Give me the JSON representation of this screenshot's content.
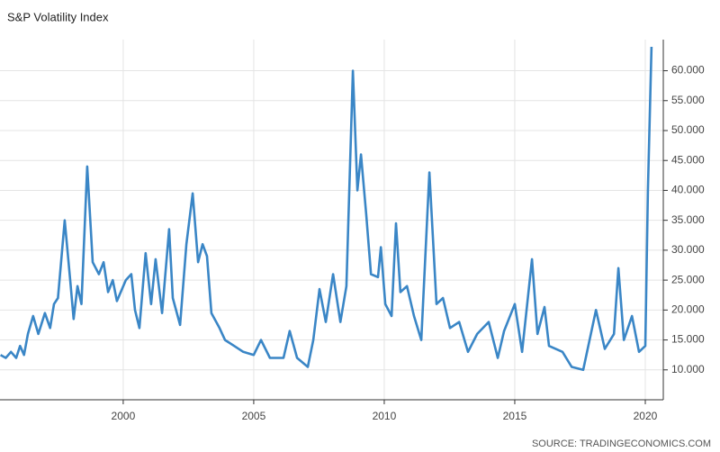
{
  "chart_data": {
    "type": "line",
    "title": "S&P Volatility Index",
    "source": "SOURCE: TRADINGECONOMICS.COM",
    "x": [
      1995.3,
      1995.5,
      1995.7,
      1995.9,
      1996.05,
      1996.2,
      1996.35,
      1996.55,
      1996.75,
      1997.0,
      1997.2,
      1997.35,
      1997.5,
      1997.76,
      1997.97,
      1998.1,
      1998.25,
      1998.4,
      1998.62,
      1998.83,
      1999.07,
      1999.25,
      1999.42,
      1999.6,
      1999.76,
      2000.1,
      2000.31,
      2000.45,
      2000.62,
      2000.86,
      2001.07,
      2001.24,
      2001.49,
      2001.76,
      2001.9,
      2002.18,
      2002.42,
      2002.66,
      2002.87,
      2003.04,
      2003.21,
      2003.38,
      2003.69,
      2003.9,
      2004.25,
      2004.6,
      2005.0,
      2005.28,
      2005.62,
      2006.14,
      2006.38,
      2006.66,
      2007.07,
      2007.28,
      2007.52,
      2007.76,
      2008.04,
      2008.32,
      2008.55,
      2008.8,
      2008.97,
      2009.11,
      2009.31,
      2009.49,
      2009.76,
      2009.87,
      2010.04,
      2010.28,
      2010.45,
      2010.62,
      2010.87,
      2011.14,
      2011.42,
      2011.73,
      2012.0,
      2012.25,
      2012.52,
      2012.87,
      2013.21,
      2013.56,
      2014.0,
      2014.35,
      2014.59,
      2015.0,
      2015.28,
      2015.66,
      2015.87,
      2016.14,
      2016.31,
      2016.83,
      2017.18,
      2017.62,
      2018.11,
      2018.45,
      2018.8,
      2018.97,
      2019.18,
      2019.49,
      2019.76,
      2020.0,
      2020.1,
      2020.24
    ],
    "series": [
      {
        "name": "S&P Volatility Index",
        "color": "#3a86c6",
        "values": [
          12.5,
          12,
          13,
          12,
          14,
          12.5,
          16,
          19,
          16,
          19.5,
          17,
          21,
          22,
          35,
          25,
          18.5,
          24,
          21,
          44,
          28,
          26,
          28,
          23,
          25,
          21.5,
          25,
          26,
          20,
          17,
          29.5,
          21,
          28.5,
          19.5,
          33.5,
          22,
          17.5,
          31,
          39.5,
          28,
          31,
          29,
          19.5,
          17,
          15,
          14,
          13,
          12.5,
          15,
          12,
          12,
          16.5,
          12,
          10.5,
          15,
          23.5,
          18,
          26,
          18,
          24,
          60,
          40,
          46,
          36,
          26,
          25.5,
          30.5,
          21,
          19,
          34.5,
          23,
          24,
          19,
          15,
          43,
          21,
          22,
          17,
          18,
          13,
          16,
          18,
          12,
          16.5,
          21,
          13,
          28.5,
          16,
          20.5,
          14,
          13,
          10.5,
          10,
          20,
          13.5,
          16,
          27,
          15,
          19,
          13,
          14,
          40,
          64
        ]
      }
    ],
    "xlim": [
      1995.28,
      2020.69
    ],
    "ylim": [
      5,
      65.2
    ],
    "xticks": [
      2000,
      2005,
      2010,
      2015,
      2020
    ],
    "yticks": [
      {
        "value": 10,
        "label": "10.000"
      },
      {
        "value": 15,
        "label": "15.000"
      },
      {
        "value": 20,
        "label": "20.000"
      },
      {
        "value": 25,
        "label": "25.000"
      },
      {
        "value": 30,
        "label": "30.000"
      },
      {
        "value": 35,
        "label": "35.000"
      },
      {
        "value": 40,
        "label": "40.000"
      },
      {
        "value": 45,
        "label": "45.000"
      },
      {
        "value": 50,
        "label": "50.000"
      },
      {
        "value": 55,
        "label": "55.000"
      },
      {
        "value": 60,
        "label": "60.000"
      }
    ],
    "grid": true
  }
}
